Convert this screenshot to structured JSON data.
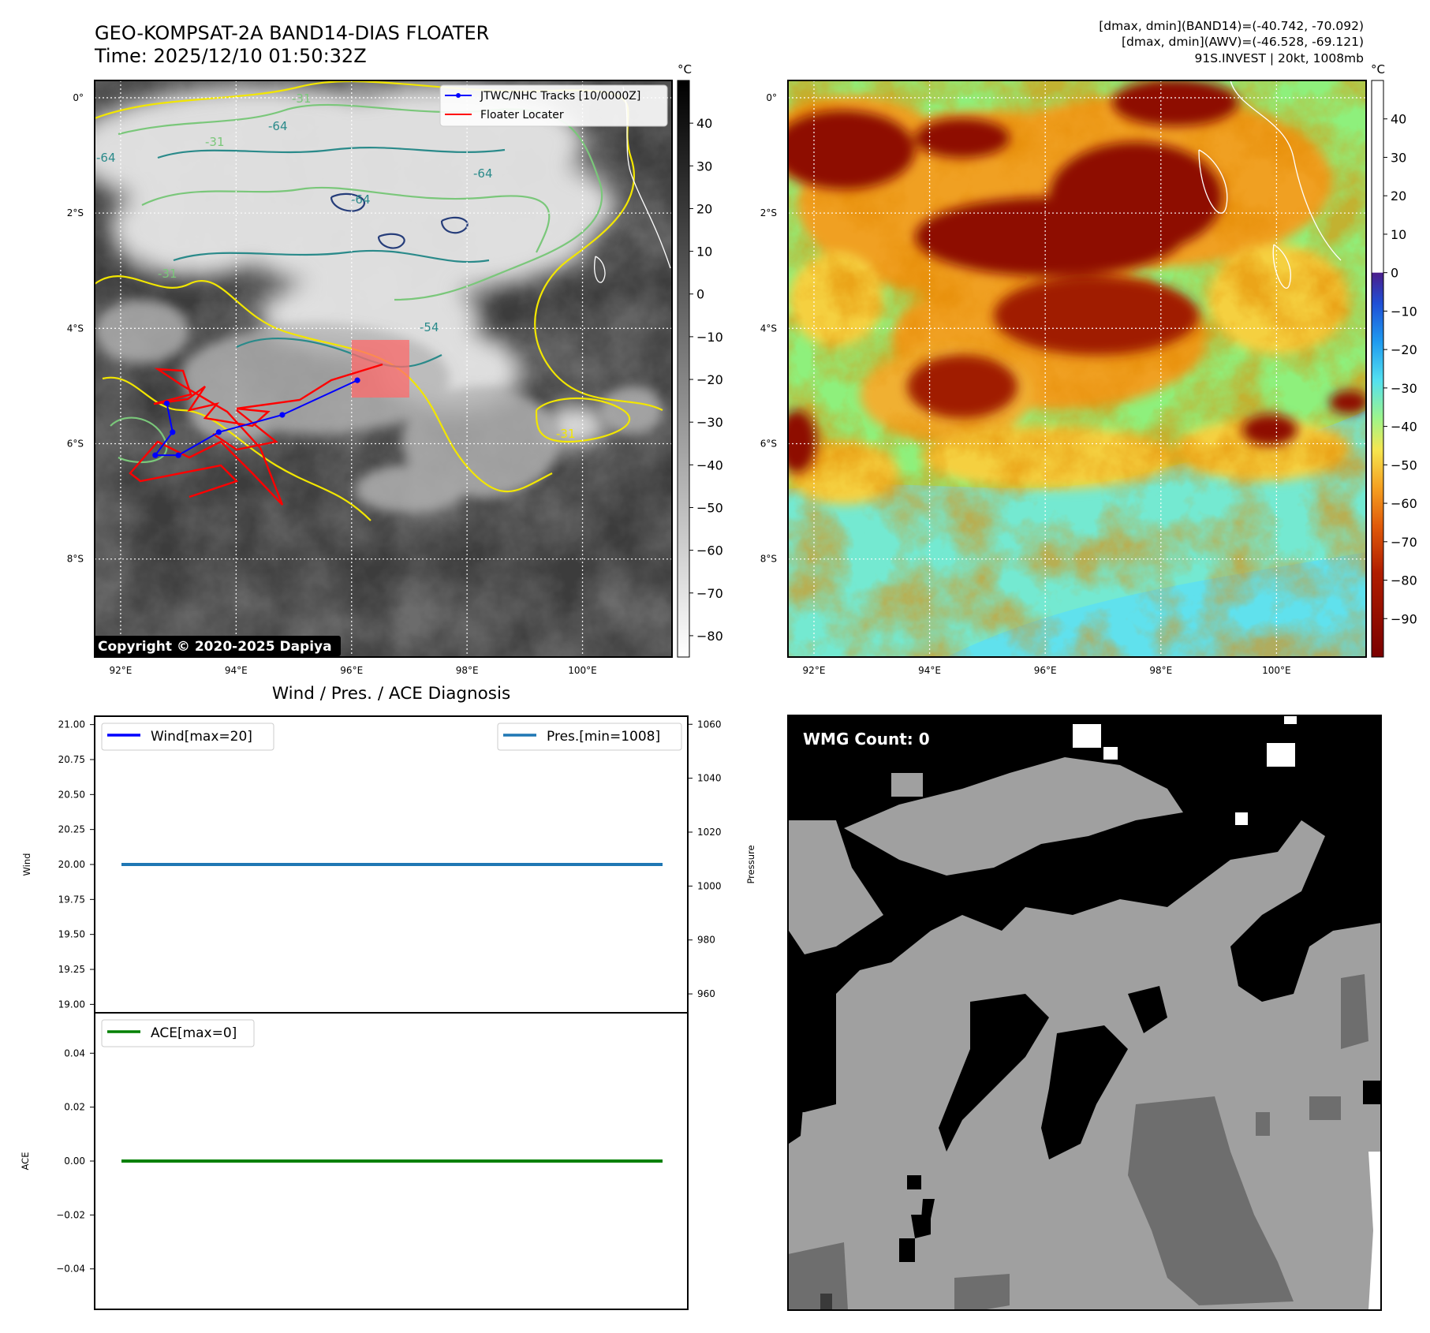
{
  "header": {
    "title_line1": "GEO-KOMPSAT-2A BAND14-DIAS FLOATER",
    "title_line2": "Time: 2025/12/10 01:50:32Z",
    "info_line1": "[dmax, dmin](BAND14)=(-40.742, -70.092)",
    "info_line2": "[dmax, dmin](AWV)=(-46.528, -69.121)",
    "info_line3": "91S.INVEST | 20kt, 1008mb"
  },
  "map_axes": {
    "lat_ticks": [
      "0°",
      "2°S",
      "4°S",
      "6°S",
      "8°S"
    ],
    "lat_values": [
      0,
      -2,
      -4,
      -6,
      -8
    ],
    "lon_ticks": [
      "92°E",
      "94°E",
      "96°E",
      "98°E",
      "100°E"
    ],
    "lon_values": [
      92,
      94,
      96,
      98,
      100
    ],
    "lon_range": [
      91.55,
      101.55
    ],
    "lat_range": [
      0.3,
      -9.7
    ]
  },
  "ir_panel": {
    "colorbar_unit": "°C",
    "colorbar_ticks": [
      "40",
      "30",
      "20",
      "10",
      "0",
      "−10",
      "−20",
      "−30",
      "−40",
      "−50",
      "−60",
      "−70",
      "−80"
    ],
    "colorbar_values": [
      40,
      30,
      20,
      10,
      0,
      -10,
      -20,
      -30,
      -40,
      -50,
      -60,
      -70,
      -80
    ],
    "colorbar_range": [
      -85,
      50
    ],
    "legend_track": "JTWC/NHC Tracks [10/0000Z]",
    "legend_floater": "Floater Locater",
    "contour_labels": [
      "-31",
      "-64",
      "-64",
      "-31",
      "-64",
      "-64",
      "-31",
      "-54",
      "-31"
    ],
    "copyright": "Copyright © 2020-2025 Dapiya",
    "colors": {
      "track": "#0000ff",
      "floater": "#ff0000",
      "contour_yellow": "#f2e600",
      "contour_green": "#7ac77a",
      "contour_teal": "#2a8a8a",
      "contour_navy": "#263d7a"
    },
    "track_points": [
      [
        96.1,
        -4.9
      ],
      [
        94.8,
        -5.5
      ],
      [
        93.7,
        -5.8
      ],
      [
        93.0,
        -6.2
      ],
      [
        92.6,
        -6.2
      ],
      [
        92.9,
        -5.8
      ],
      [
        92.8,
        -5.3
      ]
    ],
    "floater_box": {
      "lon_min": 96.0,
      "lon_max": 97.0,
      "lat_min": -5.2,
      "lat_max": -4.2
    }
  },
  "awv_panel": {
    "colorbar_unit": "°C",
    "colorbar_ticks": [
      "40",
      "30",
      "20",
      "10",
      "0",
      "−10",
      "−20",
      "−30",
      "−40",
      "−50",
      "−60",
      "−70",
      "−80",
      "−90"
    ],
    "colorbar_values": [
      40,
      30,
      20,
      10,
      0,
      -10,
      -20,
      -30,
      -40,
      -50,
      -60,
      -70,
      -80,
      -90
    ],
    "colorbar_range": [
      -100,
      50
    ]
  },
  "chart_data": [
    {
      "type": "line",
      "title": "Wind / Pres. / ACE Diagnosis",
      "ylabel": "Wind",
      "ylim": [
        18.94,
        21.06
      ],
      "yticks": [
        "21.00",
        "20.75",
        "20.50",
        "20.25",
        "20.00",
        "19.75",
        "19.50",
        "19.25",
        "19.00"
      ],
      "ytick_values": [
        21.0,
        20.75,
        20.5,
        20.25,
        20.0,
        19.75,
        19.5,
        19.25,
        19.0
      ],
      "y2label": "Pressure",
      "y2lim": [
        953.0,
        1063.0
      ],
      "y2ticks": [
        "1060",
        "1040",
        "1020",
        "1000",
        "980",
        "960"
      ],
      "y2tick_values": [
        1060,
        1040,
        1020,
        1000,
        980,
        960
      ],
      "legend_left": "Wind[max=20]",
      "legend_right": "Pres.[min=1008]",
      "series": [
        {
          "name": "Wind[max=20]",
          "color": "#0000ff",
          "axis": "left",
          "values": [
            20,
            20
          ]
        },
        {
          "name": "Pres.[min=1008]",
          "color": "#1f77b4",
          "axis": "right",
          "values": [
            1008,
            1008
          ]
        }
      ]
    },
    {
      "type": "line",
      "ylabel": "ACE",
      "ylim": [
        -0.055,
        0.055
      ],
      "yticks": [
        "0.04",
        "0.02",
        "0.00",
        "−0.02",
        "−0.04"
      ],
      "ytick_values": [
        0.04,
        0.02,
        0.0,
        -0.02,
        -0.04
      ],
      "legend": "ACE[max=0]",
      "series": [
        {
          "name": "ACE[max=0]",
          "color": "#008000",
          "values": [
            0,
            0
          ]
        }
      ]
    }
  ],
  "wmg_panel": {
    "label": "WMG Count: 0",
    "colors": {
      "black": "#000000",
      "light": "#a0a0a0",
      "dark": "#6e6e6e",
      "white": "#ffffff"
    }
  }
}
